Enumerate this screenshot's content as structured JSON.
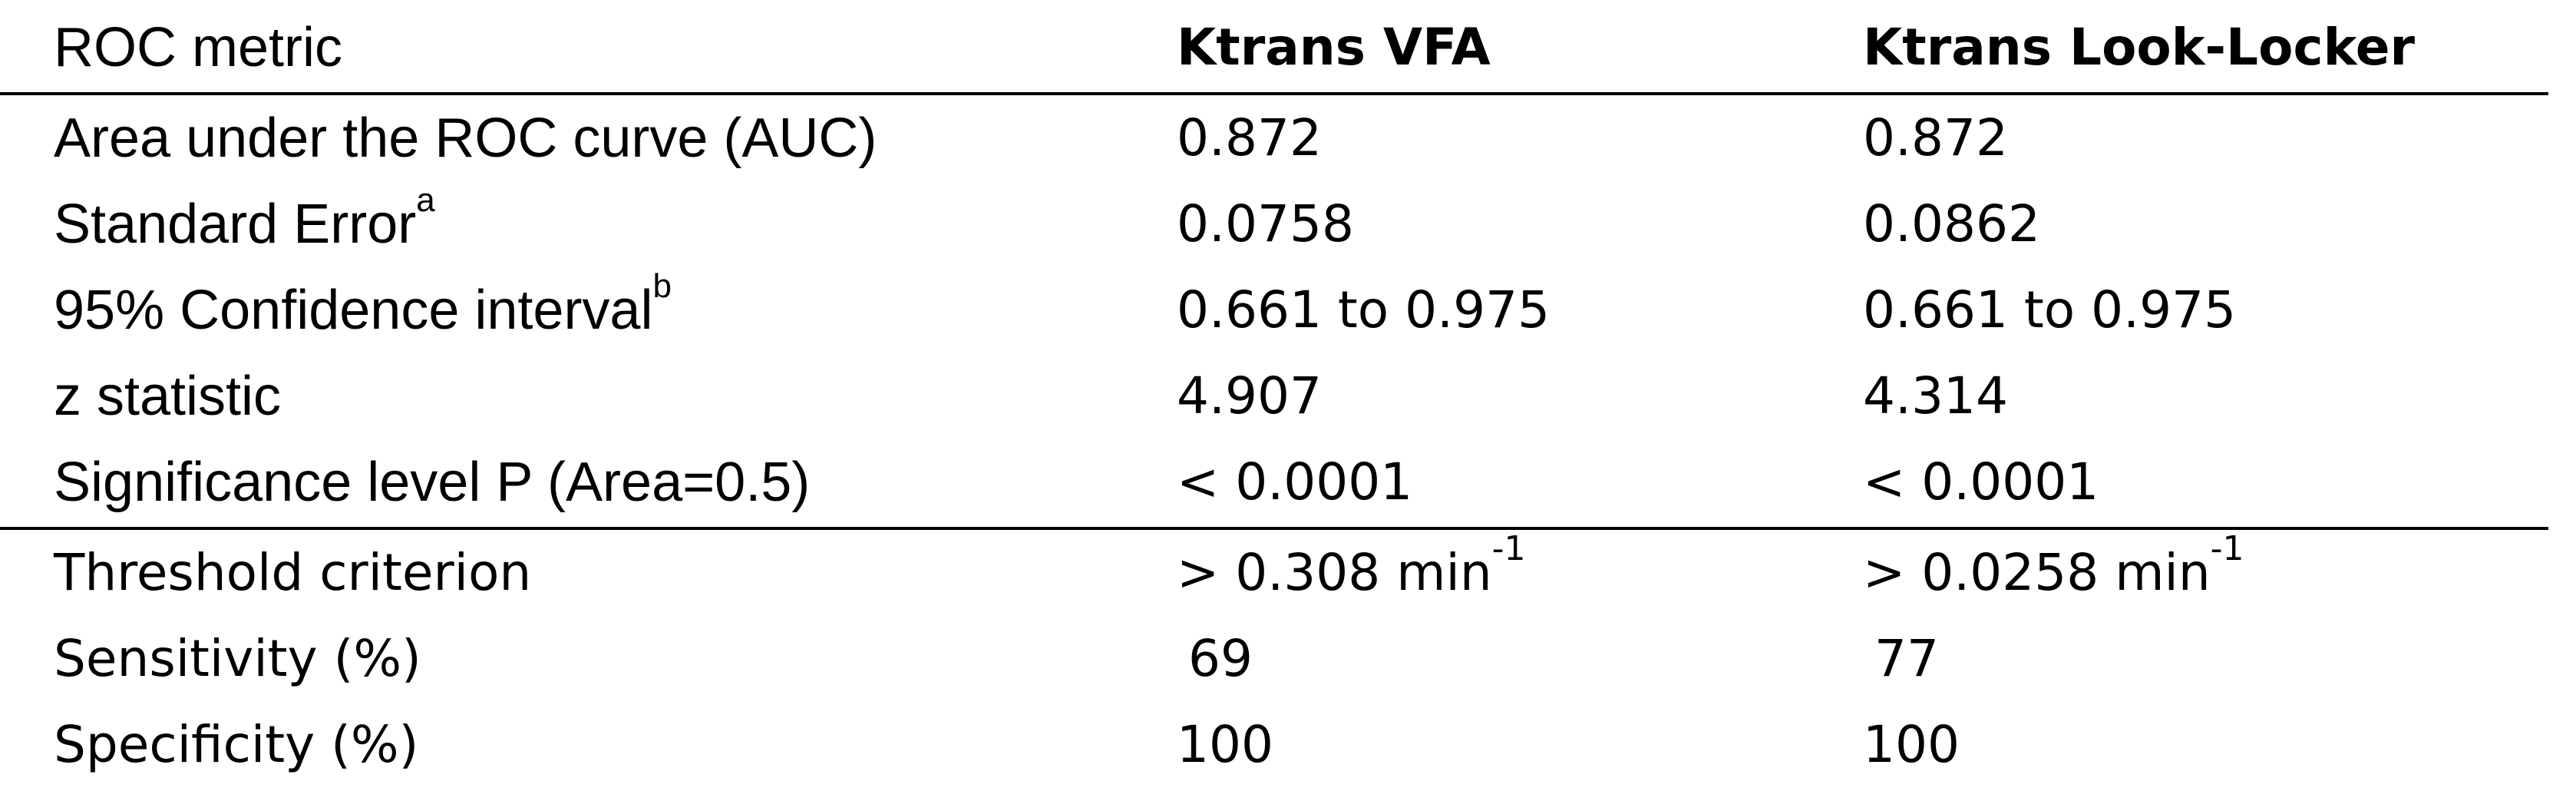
{
  "table": {
    "headers": [
      "ROC metric",
      "Ktrans VFA",
      "Ktrans Look-Locker"
    ],
    "rows": [
      {
        "metric": "Area under the ROC curve (AUC)",
        "metric_sup": "",
        "vfa": "0.872",
        "vfa_sup": "",
        "ll": "0.872",
        "ll_sup": ""
      },
      {
        "metric": "Standard Error",
        "metric_sup": "a",
        "vfa": "0.0758",
        "vfa_sup": "",
        "ll": "0.0862",
        "ll_sup": ""
      },
      {
        "metric": "95% Confidence interval",
        "metric_sup": "b",
        "vfa": "0.661 to 0.975",
        "vfa_sup": "",
        "ll": "0.661 to 0.975",
        "ll_sup": ""
      },
      {
        "metric": "z statistic",
        "metric_sup": "",
        "vfa": "4.907",
        "vfa_sup": "",
        "ll": "4.314",
        "ll_sup": ""
      },
      {
        "metric": "Significance level P (Area=0.5)",
        "metric_sup": "",
        "vfa": "< 0.0001",
        "vfa_sup": "",
        "ll": "< 0.0001",
        "ll_sup": ""
      },
      {
        "metric": "Threshold criterion",
        "metric_sup": "",
        "vfa": "> 0.308 min",
        "vfa_sup": "-1",
        "ll": "> 0.0258 min",
        "ll_sup": "-1"
      },
      {
        "metric": "Sensitivity (%)",
        "metric_sup": "",
        "vfa": "69",
        "vfa_sup": "",
        "ll": "77",
        "ll_sup": ""
      },
      {
        "metric": "Specificity (%)",
        "metric_sup": "",
        "vfa": "100",
        "vfa_sup": "",
        "ll": "100",
        "ll_sup": ""
      }
    ]
  }
}
